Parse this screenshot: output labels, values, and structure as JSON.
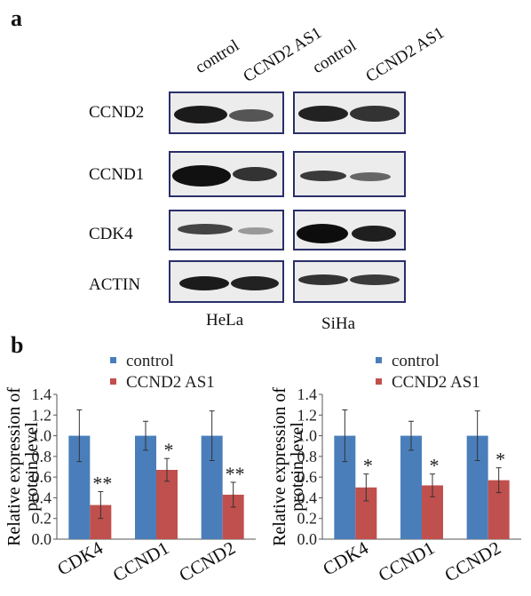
{
  "panel_a": {
    "letter": "a",
    "lanes": [
      "control",
      "CCND2 AS1",
      "control",
      "CCND2 AS1"
    ],
    "rows": [
      "CCND2",
      "CCND1",
      "CDK4",
      "ACTIN"
    ],
    "cell_lines": [
      "HeLa",
      "SiHa"
    ]
  },
  "panel_b": {
    "letter": "b"
  },
  "colors": {
    "control": "#4a7ebb",
    "treated": "#c0504d",
    "blot_border": "#2a2f6a"
  },
  "chart_data": [
    {
      "type": "bar",
      "ylabel": "Relative expression of protein level",
      "ylim": [
        0,
        1.4
      ],
      "yticks": [
        "0.0",
        "0.2",
        "0.4",
        "0.6",
        "0.8",
        "1.0",
        "1.2",
        "1.4"
      ],
      "categories": [
        "CDK4",
        "CCND1",
        "CCND2"
      ],
      "legend_position": "top",
      "series": [
        {
          "name": "control",
          "values": [
            1.0,
            1.0,
            1.0
          ],
          "errors": [
            0.25,
            0.14,
            0.24
          ]
        },
        {
          "name": "CCND2 AS1",
          "values": [
            0.33,
            0.67,
            0.43
          ],
          "errors": [
            0.13,
            0.11,
            0.12
          ]
        }
      ],
      "annotations": [
        "**",
        "*",
        "**"
      ]
    },
    {
      "type": "bar",
      "ylabel": "Relative expression of protein level",
      "ylim": [
        0,
        1.4
      ],
      "yticks": [
        "0.0",
        "0.2",
        "0.4",
        "0.6",
        "0.8",
        "1.0",
        "1.2",
        "1.4"
      ],
      "categories": [
        "CDK4",
        "CCND1",
        "CCND2"
      ],
      "legend_position": "top",
      "series": [
        {
          "name": "control",
          "values": [
            1.0,
            1.0,
            1.0
          ],
          "errors": [
            0.25,
            0.14,
            0.24
          ]
        },
        {
          "name": "CCND2 AS1",
          "values": [
            0.5,
            0.52,
            0.57
          ],
          "errors": [
            0.13,
            0.11,
            0.12
          ]
        }
      ],
      "annotations": [
        "*",
        "*",
        "*"
      ]
    }
  ]
}
